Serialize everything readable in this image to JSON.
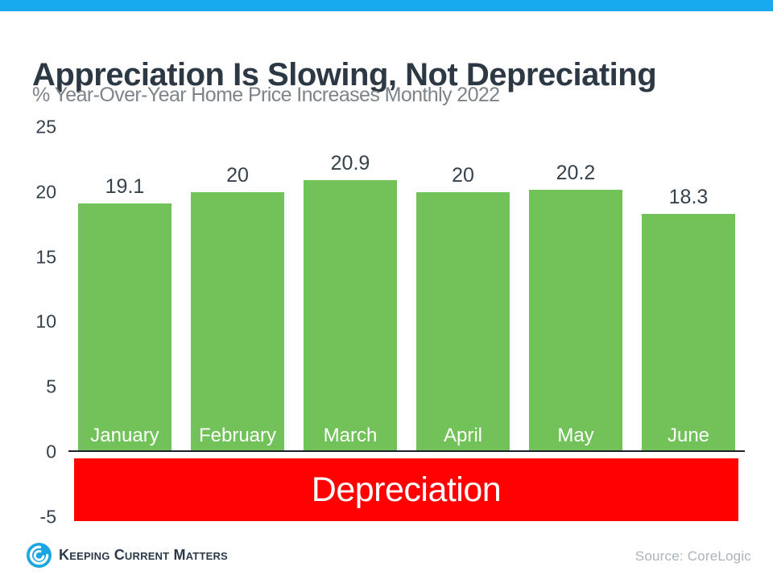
{
  "title": "Appreciation Is Slowing, Not Depreciating",
  "subtitle": "% Year-Over-Year Home Price Increases Monthly 2022",
  "chart_data": {
    "type": "bar",
    "categories": [
      "January",
      "February",
      "March",
      "April",
      "May",
      "June"
    ],
    "values": [
      19.1,
      20,
      20.9,
      20,
      20.2,
      18.3
    ],
    "value_labels": [
      "19.1",
      "20",
      "20.9",
      "20",
      "20.2",
      "18.3"
    ],
    "title": "Appreciation Is Slowing, Not Depreciating",
    "subtitle": "% Year-Over-Year Home Price Increases Monthly 2022",
    "xlabel": "",
    "ylabel": "",
    "y_ticks": [
      25,
      20,
      15,
      10,
      5,
      0,
      -5
    ],
    "ylim": [
      -5,
      25
    ],
    "grid": false,
    "legend": false,
    "bar_color": "#72c25a",
    "annotation": {
      "label": "Depreciation",
      "band_color": "#fe0100",
      "band_range": [
        0,
        -5
      ]
    }
  },
  "colors": {
    "topbar": "#18aaec",
    "bar_green": "#72c25a",
    "depreciation_red": "#fe0100",
    "title_text": "#2c3844",
    "subtitle_text": "#7d848a",
    "axis_text": "#36404a",
    "brand_blue": "#1ba6e3"
  },
  "depreciation": {
    "label": "Depreciation"
  },
  "footer": {
    "brand": "Keeping Current Matters",
    "source": "Source: CoreLogic"
  }
}
